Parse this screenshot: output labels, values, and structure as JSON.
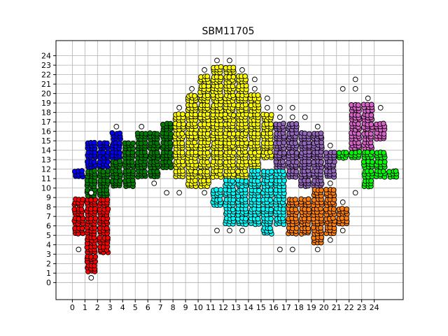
{
  "chart_data": {
    "type": "scatter",
    "title": "SBM11705",
    "xlabel": "",
    "ylabel": "",
    "xlim": [
      -1.3,
      26.3
    ],
    "ylim": [
      -1.8,
      25.6
    ],
    "x_ticks": [
      "0",
      "1",
      "2",
      "3",
      "4",
      "5",
      "6",
      "7",
      "8",
      "9",
      "10",
      "11",
      "12",
      "13",
      "14",
      "15",
      "16",
      "17",
      "18",
      "19",
      "20",
      "21",
      "22",
      "23",
      "24"
    ],
    "y_ticks": [
      "0",
      "1",
      "2",
      "3",
      "4",
      "5",
      "6",
      "7",
      "8",
      "9",
      "10",
      "11",
      "12",
      "13",
      "14",
      "15",
      "16",
      "17",
      "18",
      "19",
      "20",
      "21",
      "22",
      "23",
      "24"
    ],
    "grid": true,
    "marker": "circle",
    "marker_edge_color": "#000000",
    "series": [
      {
        "color": "#ff0000",
        "cells": [
          [
            0,
            5
          ],
          [
            0,
            6
          ],
          [
            0,
            7
          ],
          [
            0,
            8
          ],
          [
            1,
            1
          ],
          [
            1,
            2
          ],
          [
            1,
            3
          ],
          [
            1,
            4
          ],
          [
            1,
            5
          ],
          [
            1,
            6
          ],
          [
            1,
            7
          ],
          [
            1,
            8
          ],
          [
            2,
            3
          ],
          [
            2,
            4
          ],
          [
            2,
            5
          ],
          [
            2,
            6
          ],
          [
            2,
            7
          ],
          [
            2,
            8
          ]
        ]
      },
      {
        "color": "#0000ff",
        "cells": [
          [
            0,
            11
          ],
          [
            1,
            12
          ],
          [
            1,
            13
          ],
          [
            1,
            14
          ],
          [
            2,
            12
          ],
          [
            2,
            13
          ],
          [
            2,
            14
          ],
          [
            3,
            13
          ],
          [
            3,
            14
          ],
          [
            3,
            15
          ]
        ]
      },
      {
        "color": "#008000",
        "cells": [
          [
            1,
            9
          ],
          [
            1,
            10
          ],
          [
            1,
            11
          ],
          [
            2,
            9
          ],
          [
            2,
            10
          ],
          [
            2,
            11
          ],
          [
            3,
            10
          ],
          [
            3,
            11
          ],
          [
            3,
            12
          ],
          [
            4,
            10
          ],
          [
            4,
            11
          ],
          [
            4,
            12
          ],
          [
            4,
            13
          ],
          [
            4,
            14
          ],
          [
            5,
            11
          ],
          [
            5,
            12
          ],
          [
            5,
            13
          ],
          [
            5,
            14
          ],
          [
            5,
            15
          ],
          [
            6,
            11
          ],
          [
            6,
            12
          ],
          [
            6,
            13
          ],
          [
            6,
            14
          ],
          [
            6,
            15
          ],
          [
            7,
            12
          ],
          [
            7,
            13
          ],
          [
            7,
            14
          ],
          [
            7,
            15
          ],
          [
            7,
            16
          ]
        ]
      },
      {
        "color": "#ffff00",
        "cells": [
          [
            8,
            11
          ],
          [
            8,
            12
          ],
          [
            8,
            13
          ],
          [
            8,
            14
          ],
          [
            8,
            15
          ],
          [
            8,
            16
          ],
          [
            8,
            17
          ],
          [
            9,
            10
          ],
          [
            9,
            11
          ],
          [
            9,
            12
          ],
          [
            9,
            13
          ],
          [
            9,
            14
          ],
          [
            9,
            15
          ],
          [
            9,
            16
          ],
          [
            9,
            17
          ],
          [
            9,
            18
          ],
          [
            9,
            19
          ],
          [
            10,
            10
          ],
          [
            10,
            11
          ],
          [
            10,
            12
          ],
          [
            10,
            13
          ],
          [
            10,
            14
          ],
          [
            10,
            15
          ],
          [
            10,
            16
          ],
          [
            10,
            17
          ],
          [
            10,
            18
          ],
          [
            10,
            19
          ],
          [
            10,
            20
          ],
          [
            10,
            21
          ],
          [
            11,
            11
          ],
          [
            11,
            12
          ],
          [
            11,
            13
          ],
          [
            11,
            14
          ],
          [
            11,
            15
          ],
          [
            11,
            16
          ],
          [
            11,
            17
          ],
          [
            11,
            18
          ],
          [
            11,
            19
          ],
          [
            11,
            20
          ],
          [
            11,
            21
          ],
          [
            11,
            22
          ],
          [
            12,
            11
          ],
          [
            12,
            12
          ],
          [
            12,
            13
          ],
          [
            12,
            14
          ],
          [
            12,
            15
          ],
          [
            12,
            16
          ],
          [
            12,
            17
          ],
          [
            12,
            18
          ],
          [
            12,
            19
          ],
          [
            12,
            20
          ],
          [
            12,
            21
          ],
          [
            12,
            22
          ],
          [
            13,
            11
          ],
          [
            13,
            12
          ],
          [
            13,
            13
          ],
          [
            13,
            14
          ],
          [
            13,
            15
          ],
          [
            13,
            16
          ],
          [
            13,
            17
          ],
          [
            13,
            18
          ],
          [
            13,
            19
          ],
          [
            13,
            20
          ],
          [
            13,
            21
          ],
          [
            14,
            12
          ],
          [
            14,
            13
          ],
          [
            14,
            14
          ],
          [
            14,
            15
          ],
          [
            14,
            16
          ],
          [
            14,
            17
          ],
          [
            14,
            18
          ],
          [
            14,
            19
          ],
          [
            15,
            13
          ],
          [
            15,
            14
          ],
          [
            15,
            15
          ],
          [
            15,
            16
          ],
          [
            15,
            17
          ]
        ]
      },
      {
        "color": "#00ffff",
        "cells": [
          [
            11,
            8
          ],
          [
            11,
            9
          ],
          [
            12,
            6
          ],
          [
            12,
            7
          ],
          [
            12,
            8
          ],
          [
            12,
            9
          ],
          [
            12,
            10
          ],
          [
            13,
            6
          ],
          [
            13,
            7
          ],
          [
            13,
            8
          ],
          [
            13,
            9
          ],
          [
            13,
            10
          ],
          [
            14,
            6
          ],
          [
            14,
            7
          ],
          [
            14,
            8
          ],
          [
            14,
            9
          ],
          [
            14,
            10
          ],
          [
            14,
            11
          ],
          [
            15,
            5
          ],
          [
            15,
            6
          ],
          [
            15,
            7
          ],
          [
            15,
            8
          ],
          [
            15,
            9
          ],
          [
            15,
            10
          ],
          [
            15,
            11
          ],
          [
            16,
            6
          ],
          [
            16,
            7
          ],
          [
            16,
            8
          ],
          [
            16,
            9
          ],
          [
            16,
            10
          ],
          [
            16,
            11
          ]
        ]
      },
      {
        "color": "#9467bd",
        "cells": [
          [
            16,
            12
          ],
          [
            16,
            13
          ],
          [
            16,
            14
          ],
          [
            16,
            15
          ],
          [
            16,
            16
          ],
          [
            17,
            11
          ],
          [
            17,
            12
          ],
          [
            17,
            13
          ],
          [
            17,
            14
          ],
          [
            17,
            15
          ],
          [
            17,
            16
          ],
          [
            18,
            10
          ],
          [
            18,
            11
          ],
          [
            18,
            12
          ],
          [
            18,
            13
          ],
          [
            18,
            14
          ],
          [
            18,
            15
          ],
          [
            19,
            10
          ],
          [
            19,
            11
          ],
          [
            19,
            12
          ],
          [
            19,
            13
          ],
          [
            19,
            14
          ],
          [
            19,
            15
          ],
          [
            20,
            11
          ],
          [
            20,
            12
          ],
          [
            20,
            13
          ]
        ]
      },
      {
        "color": "#ff7f0e",
        "cells": [
          [
            17,
            5
          ],
          [
            17,
            6
          ],
          [
            17,
            7
          ],
          [
            17,
            8
          ],
          [
            18,
            5
          ],
          [
            18,
            6
          ],
          [
            18,
            7
          ],
          [
            18,
            8
          ],
          [
            19,
            4
          ],
          [
            19,
            5
          ],
          [
            19,
            6
          ],
          [
            19,
            7
          ],
          [
            19,
            8
          ],
          [
            19,
            9
          ],
          [
            20,
            5
          ],
          [
            20,
            6
          ],
          [
            20,
            7
          ],
          [
            20,
            8
          ],
          [
            20,
            9
          ],
          [
            21,
            6
          ],
          [
            21,
            7
          ]
        ]
      },
      {
        "color": "#d962c9",
        "cells": [
          [
            22,
            14
          ],
          [
            22,
            15
          ],
          [
            22,
            16
          ],
          [
            22,
            17
          ],
          [
            22,
            18
          ],
          [
            23,
            14
          ],
          [
            23,
            15
          ],
          [
            23,
            16
          ],
          [
            23,
            17
          ],
          [
            23,
            18
          ],
          [
            24,
            15
          ],
          [
            24,
            16
          ]
        ]
      },
      {
        "color": "#00ff00",
        "cells": [
          [
            21,
            13
          ],
          [
            22,
            13
          ],
          [
            23,
            10
          ],
          [
            23,
            11
          ],
          [
            23,
            12
          ],
          [
            23,
            13
          ],
          [
            24,
            11
          ],
          [
            24,
            12
          ],
          [
            24,
            13
          ],
          [
            25,
            11
          ]
        ]
      },
      {
        "color": "#ffffff",
        "cells": [
          [
            0,
            3
          ],
          [
            1,
            0
          ],
          [
            1,
            9
          ],
          [
            3,
            16
          ],
          [
            5,
            16
          ],
          [
            7,
            9
          ],
          [
            8,
            9
          ],
          [
            8,
            18
          ],
          [
            9,
            20
          ],
          [
            10,
            22
          ],
          [
            11,
            23
          ],
          [
            12,
            23
          ],
          [
            13,
            22
          ],
          [
            14,
            20
          ],
          [
            14,
            21
          ],
          [
            15,
            18
          ],
          [
            15,
            19
          ],
          [
            16,
            17
          ],
          [
            16,
            18
          ],
          [
            17,
            17
          ],
          [
            17,
            18
          ],
          [
            18,
            17
          ],
          [
            19,
            16
          ],
          [
            20,
            10
          ],
          [
            20,
            14
          ],
          [
            20,
            4
          ],
          [
            21,
            5
          ],
          [
            21,
            8
          ],
          [
            21,
            20
          ],
          [
            22,
            20
          ],
          [
            22,
            21
          ],
          [
            23,
            19
          ],
          [
            24,
            18
          ],
          [
            11,
            5
          ],
          [
            12,
            5
          ],
          [
            13,
            5
          ],
          [
            16,
            3
          ],
          [
            17,
            3
          ],
          [
            19,
            3
          ],
          [
            10,
            9
          ],
          [
            6,
            10
          ],
          [
            22,
            9
          ]
        ]
      }
    ]
  }
}
